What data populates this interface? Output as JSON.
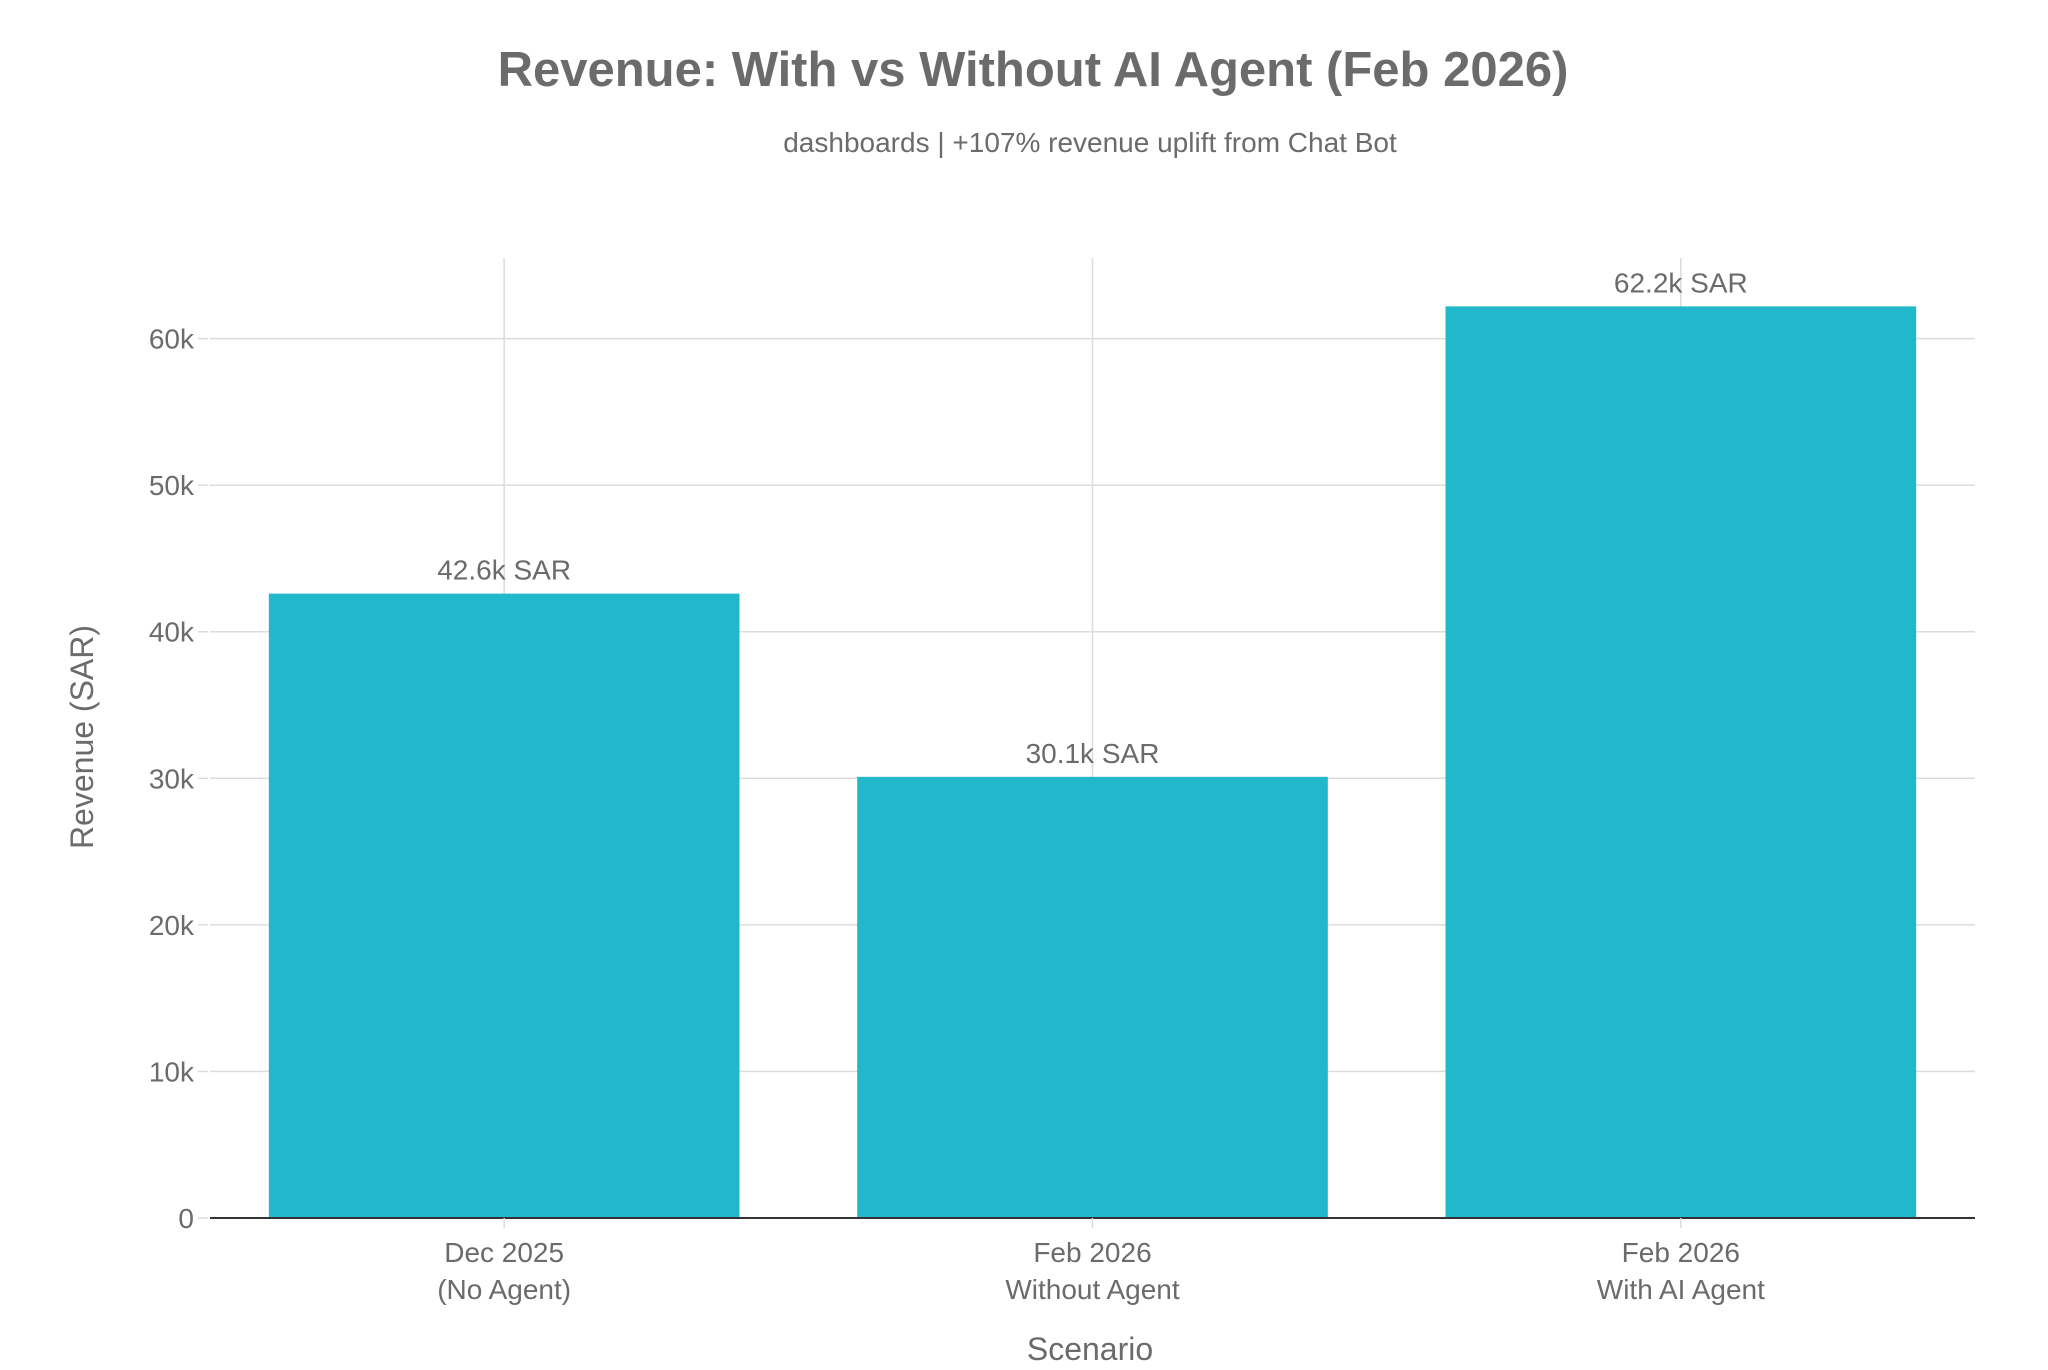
{
  "chart_data": {
    "type": "bar",
    "title": "Revenue: With vs Without AI Agent (Feb 2026)",
    "subtitle": "dashboards | +107% revenue uplift from Chat Bot",
    "xlabel": "Scenario",
    "ylabel": "Revenue (SAR)",
    "categories": [
      [
        "Dec 2025",
        "(No Agent)"
      ],
      [
        "Feb 2026",
        "Without Agent"
      ],
      [
        "Feb 2026",
        "With AI Agent"
      ]
    ],
    "values": [
      42600,
      30100,
      62200
    ],
    "data_labels": [
      "42.6k SAR",
      "30.1k SAR",
      "62.2k SAR"
    ],
    "ylim": [
      0,
      65500
    ],
    "yticks": [
      0,
      10000,
      20000,
      30000,
      40000,
      50000,
      60000
    ],
    "ytick_labels": [
      "0",
      "10k",
      "20k",
      "30k",
      "40k",
      "50k",
      "60k"
    ],
    "grid": true,
    "legend": "none",
    "colors": {
      "bar": "#21b8cc",
      "grid": "#dcdcdc",
      "axis": "#333333",
      "text": "#6b6b6b"
    }
  }
}
